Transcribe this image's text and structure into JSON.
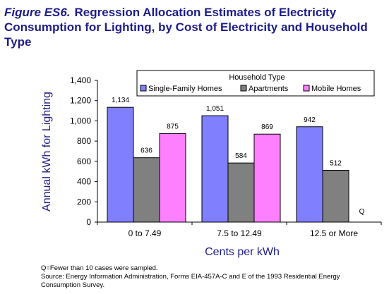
{
  "figure_label": "Figure ES6.",
  "title": "Regression Allocation Estimates of Electricity Consumption for Lighting, by Cost of Electricity and Household Type",
  "note": "Q=Fewer than 10 cases were sampled.",
  "source": "Source:  Energy Information Administration, Forms EIA-457A-C and E of the 1993 Residential Energy Consumption Survey.",
  "chart_data": {
    "type": "bar",
    "title": "Regression Allocation Estimates of Electricity Consumption for Lighting, by Cost of Electricity and Household Type",
    "xlabel": "Cents per kWh",
    "ylabel": "Annual kWh for Lighting",
    "ylim": [
      0,
      1400
    ],
    "yticks": [
      0,
      200,
      400,
      600,
      800,
      1000,
      1200,
      1400
    ],
    "ytick_labels": [
      "0",
      "200",
      "400",
      "600",
      "800",
      "1,000",
      "1,200",
      "1,400"
    ],
    "categories": [
      "0 to 7.49",
      "7.5 to 12.49",
      "12.5 or More"
    ],
    "legend_title": "Household Type",
    "legend_position": "top-right",
    "grid": false,
    "series": [
      {
        "name": "Single-Family Homes",
        "color": "#8080ff",
        "values": [
          1134,
          1051,
          942
        ],
        "labels": [
          "1,134",
          "1,051",
          "942"
        ]
      },
      {
        "name": "Apartments",
        "color": "#808080",
        "values": [
          636,
          584,
          512
        ],
        "labels": [
          "636",
          "584",
          "512"
        ]
      },
      {
        "name": "Mobile Homes",
        "color": "#ff80ff",
        "values": [
          875,
          869,
          null
        ],
        "labels": [
          "875",
          "869",
          "Q"
        ]
      }
    ]
  }
}
